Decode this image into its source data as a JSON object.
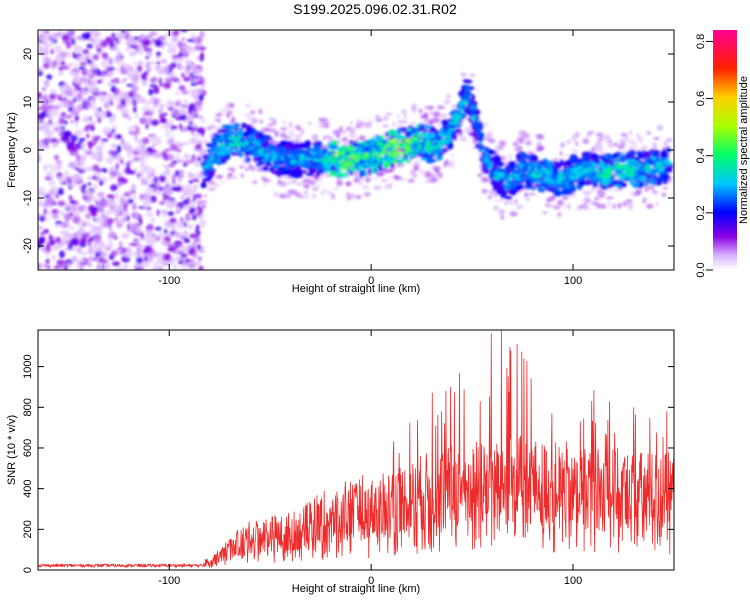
{
  "figure_title": "S199.2025.096.02.31.R02",
  "chart_data": [
    {
      "type": "heatmap",
      "xlabel": "Height of straight line (km)",
      "ylabel": "Frequency (Hz)",
      "xlim": [
        -165,
        150
      ],
      "ylim": [
        -25,
        25
      ],
      "xticks": [
        -100,
        0,
        100
      ],
      "yticks": [
        -20,
        -10,
        0,
        10,
        20
      ],
      "colorbar": {
        "label": "Normalized spectral amplitude",
        "range": [
          0,
          0.84
        ],
        "ticks": [
          "0.0",
          "0.2",
          "0.4",
          "0.6",
          "0.8"
        ],
        "tick_values": [
          0.0,
          0.2,
          0.4,
          0.6,
          0.8
        ],
        "colormap": "rainbow (white-violet-blue-cyan-green-yellow-red-magenta)"
      },
      "noise_region_x": [
        -165,
        -83
      ],
      "ridge": [
        {
          "x": -83,
          "y": -4,
          "amp": 0.25
        },
        {
          "x": -78,
          "y": -1,
          "amp": 0.3
        },
        {
          "x": -72,
          "y": 1.5,
          "amp": 0.35
        },
        {
          "x": -65,
          "y": 2,
          "amp": 0.35
        },
        {
          "x": -58,
          "y": 1,
          "amp": 0.3
        },
        {
          "x": -50,
          "y": -1,
          "amp": 0.3
        },
        {
          "x": -42,
          "y": -2,
          "amp": 0.25
        },
        {
          "x": -35,
          "y": -2,
          "amp": 0.25
        },
        {
          "x": -25,
          "y": -1.5,
          "amp": 0.3
        },
        {
          "x": -15,
          "y": -2,
          "amp": 0.65
        },
        {
          "x": -5,
          "y": -2,
          "amp": 0.45
        },
        {
          "x": 5,
          "y": -0.5,
          "amp": 0.5
        },
        {
          "x": 15,
          "y": 1,
          "amp": 0.7
        },
        {
          "x": 25,
          "y": 1.5,
          "amp": 0.45
        },
        {
          "x": 32,
          "y": 1,
          "amp": 0.35
        },
        {
          "x": 38,
          "y": 3,
          "amp": 0.35
        },
        {
          "x": 44,
          "y": 8,
          "amp": 0.3
        },
        {
          "x": 48,
          "y": 12,
          "amp": 0.25
        },
        {
          "x": 52,
          "y": 6,
          "amp": 0.2
        },
        {
          "x": 56,
          "y": -1,
          "amp": 0.25
        },
        {
          "x": 62,
          "y": -5,
          "amp": 0.25
        },
        {
          "x": 68,
          "y": -7,
          "amp": 0.3
        },
        {
          "x": 75,
          "y": -4,
          "amp": 0.3
        },
        {
          "x": 85,
          "y": -5,
          "amp": 0.35
        },
        {
          "x": 95,
          "y": -6,
          "amp": 0.3
        },
        {
          "x": 105,
          "y": -4,
          "amp": 0.3
        },
        {
          "x": 115,
          "y": -5,
          "amp": 0.4
        },
        {
          "x": 125,
          "y": -4,
          "amp": 0.4
        },
        {
          "x": 135,
          "y": -4,
          "amp": 0.35
        },
        {
          "x": 148,
          "y": -3,
          "amp": 0.3
        }
      ]
    },
    {
      "type": "line",
      "xlabel": "Height of straight line (km)",
      "ylabel": "SNR (10 * v/v)",
      "xlim": [
        -165,
        150
      ],
      "ylim": [
        0,
        1180
      ],
      "xticks": [
        -100,
        0,
        100
      ],
      "yticks": [
        0,
        200,
        400,
        600,
        800,
        1000
      ],
      "series": [
        {
          "color": "#ee2a2a",
          "x": [
            -165,
            -140,
            -115,
            -90,
            -80,
            -75,
            -70,
            -65,
            -60,
            -55,
            -50,
            -45,
            -40,
            -35,
            -30,
            -25,
            -20,
            -15,
            -10,
            -5,
            0,
            5,
            10,
            15,
            20,
            25,
            30,
            35,
            40,
            45,
            50,
            55,
            60,
            65,
            70,
            75,
            80,
            85,
            90,
            95,
            100,
            105,
            110,
            115,
            120,
            125,
            130,
            135,
            140,
            145,
            150
          ],
          "baseline": [
            20,
            22,
            20,
            22,
            40,
            70,
            110,
            140,
            160,
            170,
            180,
            185,
            190,
            200,
            220,
            240,
            250,
            260,
            280,
            290,
            300,
            320,
            340,
            350,
            360,
            380,
            390,
            400,
            410,
            420,
            420,
            430,
            430,
            440,
            440,
            440,
            430,
            430,
            420,
            420,
            420,
            410,
            410,
            400,
            400,
            400,
            390,
            390,
            390,
            390,
            380
          ],
          "peaks": [
            8,
            10,
            8,
            12,
            40,
            90,
            160,
            200,
            220,
            230,
            250,
            260,
            270,
            300,
            350,
            380,
            400,
            420,
            500,
            500,
            520,
            600,
            650,
            700,
            780,
            850,
            900,
            920,
            1000,
            1050,
            1050,
            1100,
            1180,
            1180,
            1150,
            1100,
            1050,
            1000,
            950,
            950,
            950,
            900,
            900,
            880,
            850,
            850,
            850,
            820,
            800,
            800,
            800
          ]
        }
      ]
    }
  ]
}
